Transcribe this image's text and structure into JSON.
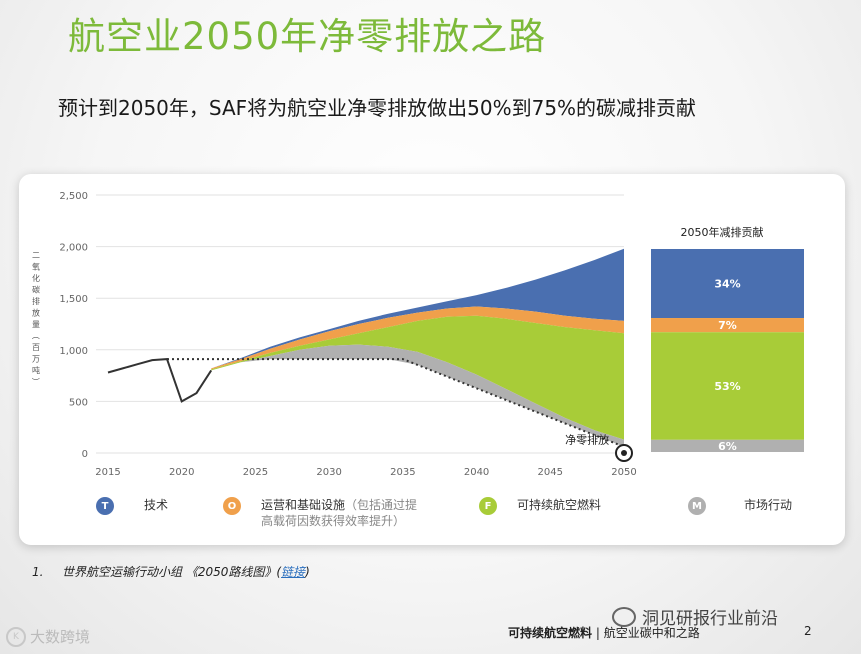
{
  "page": {
    "title": "航空业2050年净零排放之路",
    "subtitle": "预计到2050年，SAF将为航空业净零排放做出50%到75%的碳减排贡献"
  },
  "chart_data": {
    "type": "area",
    "title": "",
    "ylabel": "二氧化碳排放量（百万吨）",
    "xlabel": "",
    "xlim": [
      2015,
      2050
    ],
    "ylim": [
      0,
      2500
    ],
    "x_ticks": [
      2015,
      2020,
      2025,
      2030,
      2035,
      2040,
      2045,
      2050
    ],
    "y_ticks": [
      0,
      500,
      1000,
      1500,
      2000,
      2500
    ],
    "y_tick_labels": [
      "0",
      "500",
      "1,000",
      "1,500",
      "2,000",
      "2,500"
    ],
    "x": [
      2022,
      2024,
      2026,
      2028,
      2030,
      2032,
      2034,
      2036,
      2038,
      2040,
      2042,
      2044,
      2046,
      2048,
      2050
    ],
    "historical": {
      "x": [
        2015,
        2016,
        2017,
        2018,
        2019,
        2020,
        2021,
        2022
      ],
      "values": [
        780,
        820,
        860,
        900,
        910,
        500,
        580,
        800
      ]
    },
    "baseline_dotted": {
      "x": [
        2019,
        2035,
        2050
      ],
      "values": [
        910,
        910,
        60
      ]
    },
    "series": [
      {
        "name": "技术",
        "color": "#4a6fb0",
        "values": [
          820,
          920,
          1030,
          1120,
          1200,
          1280,
          1350,
          1410,
          1470,
          1530,
          1600,
          1680,
          1770,
          1870,
          1980
        ]
      },
      {
        "name": "运营和基础设施",
        "color": "#f0a04b",
        "values": [
          820,
          910,
          1010,
          1100,
          1180,
          1250,
          1310,
          1360,
          1400,
          1420,
          1400,
          1370,
          1330,
          1300,
          1280
        ]
      },
      {
        "name": "可持续航空燃料",
        "color": "#a8cc38",
        "values": [
          810,
          890,
          970,
          1040,
          1100,
          1160,
          1220,
          1280,
          1320,
          1330,
          1300,
          1260,
          1220,
          1190,
          1160
        ]
      },
      {
        "name": "市场行动",
        "color": "#b0b0b0",
        "values": [
          800,
          880,
          940,
          1000,
          1040,
          1050,
          1030,
          980,
          880,
          760,
          620,
          480,
          340,
          220,
          130
        ]
      }
    ],
    "net_zero_label": "净零排放",
    "contribution": {
      "title": "2050年减排贡献",
      "segments": [
        {
          "label": "34%",
          "value": 34,
          "color": "#4a6fb0"
        },
        {
          "label": "7%",
          "value": 7,
          "color": "#f0a04b"
        },
        {
          "label": "53%",
          "value": 53,
          "color": "#a8cc38"
        },
        {
          "label": "6%",
          "value": 6,
          "color": "#b0b0b0"
        }
      ]
    }
  },
  "legend": [
    {
      "letter": "T",
      "label": "技术",
      "note": "",
      "color": "#4a6fb0"
    },
    {
      "letter": "O",
      "label": "运营和基础设施",
      "note_inline": "（包括通过提",
      "note": "高载荷因数获得效率提升）",
      "color": "#f0a04b"
    },
    {
      "letter": "F",
      "label": "可持续航空燃料",
      "note": "",
      "color": "#a8cc38"
    },
    {
      "letter": "M",
      "label": "市场行动",
      "note": "",
      "color": "#b0b0b0"
    }
  ],
  "footnote": {
    "number": "1.",
    "text": "世界航空运输行动小组 《2050路线图》(",
    "link": "链接",
    "close": ")"
  },
  "footer": {
    "bold": "可持续航空燃料",
    "rest": " | 航空业碳中和之路",
    "page": "2"
  },
  "watermarks": {
    "right": "洞见研报行业前沿",
    "left": "大数跨境",
    "left_logo": "K"
  }
}
